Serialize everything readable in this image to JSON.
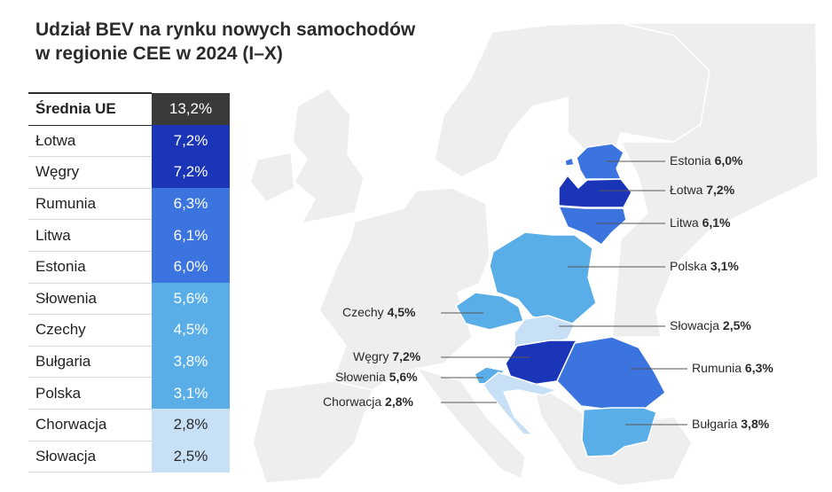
{
  "title": {
    "line1": "Udział BEV na rynku nowych samochodów",
    "line2": "w regionie CEE w 2024 (I–X)"
  },
  "colors": {
    "eu_avg": "#3a3a3a",
    "dark": "#1a35b8",
    "mid": "#3b74de",
    "light": "#5aaee8",
    "pale": "#c7e0f6",
    "base_map": "#eeeeee"
  },
  "table": {
    "average": {
      "name": "Średnia UE",
      "value": "13,2%"
    },
    "rows": [
      {
        "name": "Łotwa",
        "value": "7,2%",
        "shade": "dark"
      },
      {
        "name": "Węgry",
        "value": "7,2%",
        "shade": "dark"
      },
      {
        "name": "Rumunia",
        "value": "6,3%",
        "shade": "mid"
      },
      {
        "name": "Litwa",
        "value": "6,1%",
        "shade": "mid"
      },
      {
        "name": "Estonia",
        "value": "6,0%",
        "shade": "mid"
      },
      {
        "name": "Słowenia",
        "value": "5,6%",
        "shade": "light"
      },
      {
        "name": "Czechy",
        "value": "4,5%",
        "shade": "light"
      },
      {
        "name": "Bułgaria",
        "value": "3,8%",
        "shade": "light"
      },
      {
        "name": "Polska",
        "value": "3,1%",
        "shade": "light"
      },
      {
        "name": "Chorwacja",
        "value": "2,8%",
        "shade": "pale"
      },
      {
        "name": "Słowacja",
        "value": "2,5%",
        "shade": "pale"
      }
    ]
  },
  "map_labels": {
    "estonia": {
      "name": "Estonia",
      "value": "6,0%"
    },
    "latvia": {
      "name": "Łotwa",
      "value": "7,2%"
    },
    "lithuania": {
      "name": "Litwa",
      "value": "6,1%"
    },
    "poland": {
      "name": "Polska",
      "value": "3,1%"
    },
    "czechia": {
      "name": "Czechy",
      "value": "4,5%"
    },
    "slovakia": {
      "name": "Słowacja",
      "value": "2,5%"
    },
    "hungary": {
      "name": "Węgry",
      "value": "7,2%"
    },
    "romania": {
      "name": "Rumunia",
      "value": "6,3%"
    },
    "slovenia": {
      "name": "Słowenia",
      "value": "5,6%"
    },
    "croatia": {
      "name": "Chorwacja",
      "value": "2,8%"
    },
    "bulgaria": {
      "name": "Bułgaria",
      "value": "3,8%"
    }
  }
}
